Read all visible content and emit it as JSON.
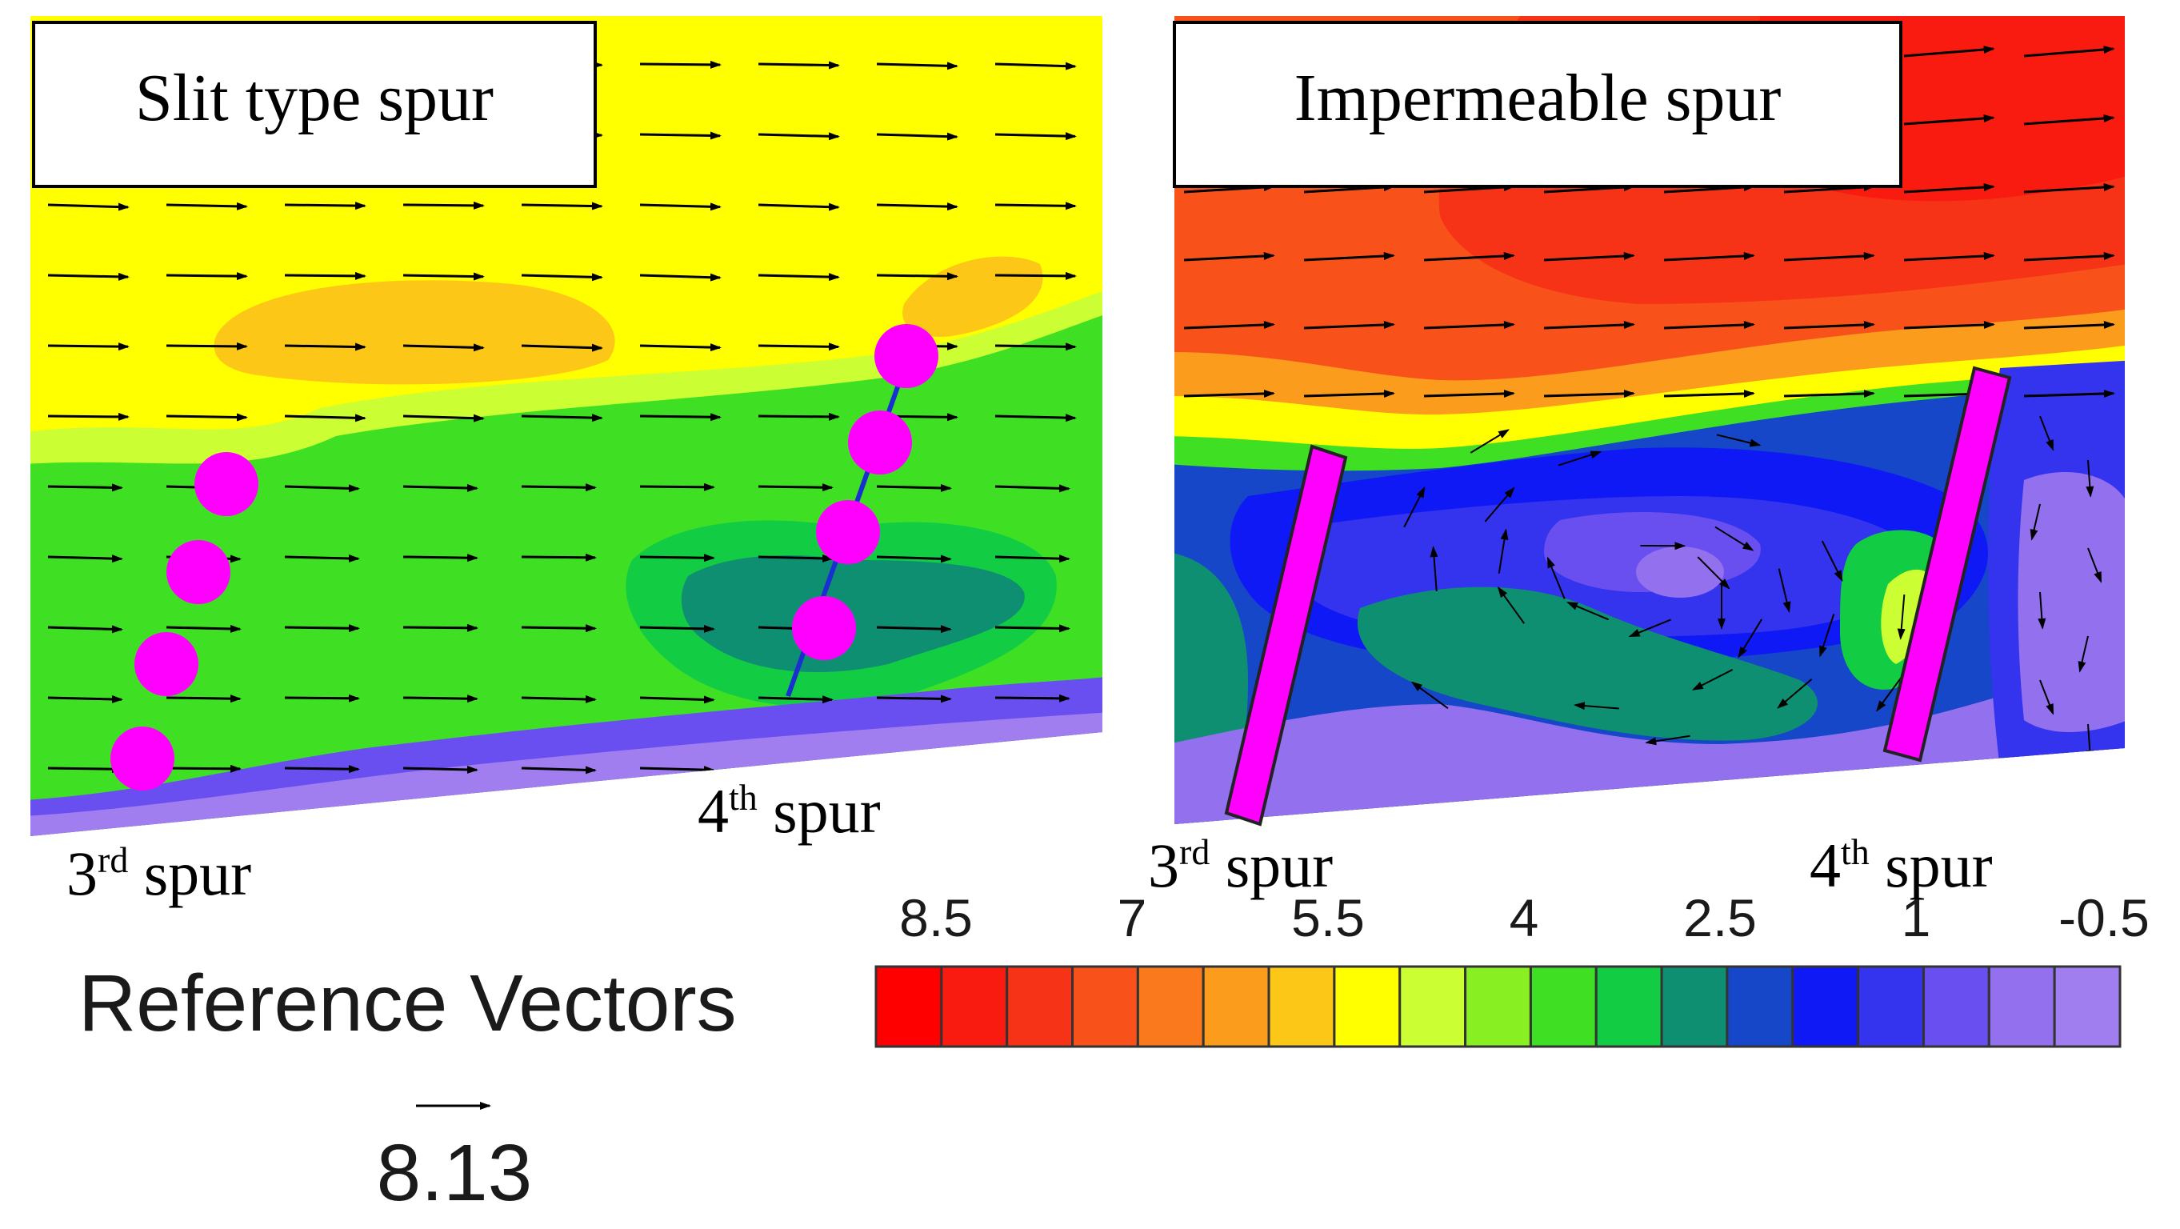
{
  "left_panel": {
    "title": "Slit type spur",
    "spur_a_num": "3",
    "spur_a_sup": "rd",
    "spur_a_word": " spur",
    "spur_b_num": "4",
    "spur_b_sup": "th",
    "spur_b_word": " spur"
  },
  "right_panel": {
    "title": "Impermeable spur",
    "spur_a_num": "3",
    "spur_a_sup": "rd",
    "spur_a_word": " spur",
    "spur_b_num": "4",
    "spur_b_sup": "th",
    "spur_b_word": " spur"
  },
  "legend": {
    "reference_label": "Reference Vectors",
    "reference_value": "8.13",
    "tick_labels": [
      "8.5",
      "7",
      "5.5",
      "4",
      "2.5",
      "1",
      "-0.5"
    ],
    "colors": [
      "#ff0000",
      "#f91a10",
      "#f73317",
      "#f8521a",
      "#f9791c",
      "#fb9c1d",
      "#fdc717",
      "#ffff00",
      "#ccff33",
      "#88f022",
      "#3fe024",
      "#12cc44",
      "#0e8f72",
      "#1547c8",
      "#0f19f5",
      "#3434ee",
      "#6a4ff0",
      "#9370ee",
      "#a07ef0"
    ]
  }
}
